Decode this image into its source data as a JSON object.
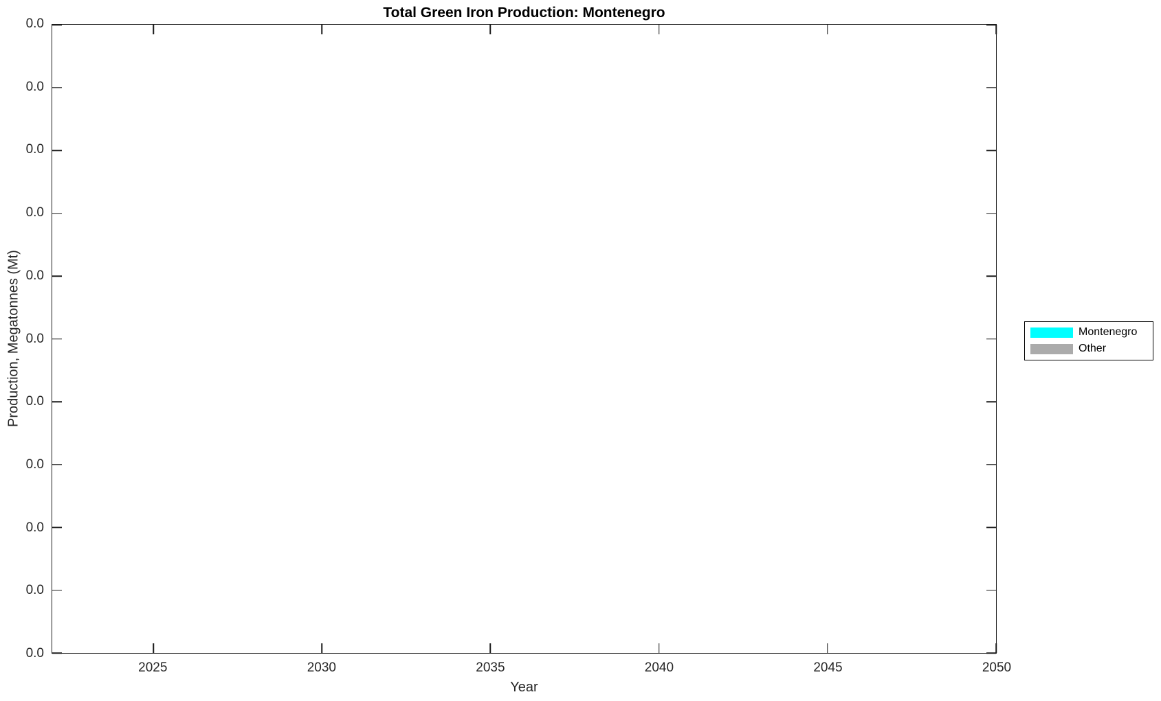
{
  "chart_data": {
    "type": "bar",
    "stacked": true,
    "title": "Total Green Iron Production: Montenegro",
    "xlabel": "Year",
    "ylabel": "Production, Megatonnes (Mt)",
    "xlim": [
      2022,
      2050
    ],
    "x_ticks": [
      2025,
      2030,
      2035,
      2040,
      2045,
      2050
    ],
    "y_tick_labels": [
      "0.0",
      "0.0",
      "0.0",
      "0.0",
      "0.0",
      "0.0",
      "0.0",
      "0.0",
      "0.0",
      "0.0",
      "0.0"
    ],
    "grid": false,
    "legend_position": "outside-right-middle",
    "series": [
      {
        "name": "Montenegro",
        "color": "#00FFFF",
        "values": []
      },
      {
        "name": "Other",
        "color": "#ABABAB",
        "values": []
      }
    ],
    "note": "Plot area contains no visible data marks; every y-axis tick label reads 0.0"
  },
  "colors": {
    "background": "#FFFFFF",
    "axis_line": "#1A1A1A",
    "tick_text": "#262626",
    "title_text": "#000000",
    "legend_border": "#000000",
    "legend_background": "#FFFFFF"
  }
}
